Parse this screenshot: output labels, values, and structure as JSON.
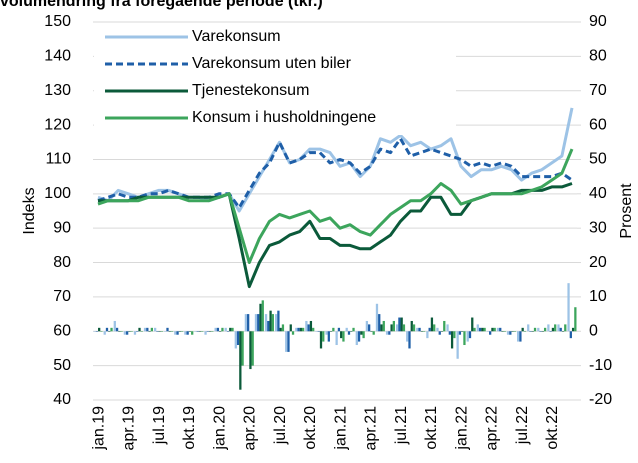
{
  "chart_data": {
    "type": "line",
    "title": "volumendring fra foregående periode (tkr.)",
    "ylabel": "Indeks",
    "y2label": "Prosent",
    "categories": [
      "jan.19",
      null,
      null,
      "apr.19",
      null,
      null,
      "jul.19",
      null,
      null,
      "okt.19",
      null,
      null,
      "jan.20",
      null,
      null,
      "apr.20",
      null,
      null,
      "jul.20",
      null,
      null,
      "okt.20",
      null,
      null,
      "jan.21",
      null,
      null,
      "apr.21",
      null,
      null,
      "jul.21",
      null,
      null,
      "okt.21",
      null,
      null,
      "jan.22",
      null,
      null,
      "apr.22",
      null,
      null,
      "jul.22",
      null,
      null,
      "okt.22",
      null,
      null
    ],
    "ylim": [
      40,
      150
    ],
    "yticks": [
      40,
      50,
      60,
      70,
      80,
      90,
      100,
      110,
      120,
      130,
      140,
      150
    ],
    "y2lim": [
      -20,
      90
    ],
    "y2ticks": [
      -20,
      -10,
      0,
      10,
      20,
      30,
      40,
      50,
      60,
      70,
      80,
      90
    ],
    "grid": true,
    "legend": "upper left",
    "series": [
      {
        "name": "Varekonsum",
        "color": "#9dc3e6",
        "dashed": false,
        "values": [
          99,
          98,
          101,
          100,
          99,
          100,
          101,
          101,
          100,
          99,
          99,
          98,
          99,
          100,
          95,
          100,
          105,
          110,
          115,
          109,
          110,
          113,
          113,
          112,
          108,
          109,
          105,
          108,
          116,
          115,
          117,
          114,
          115,
          113,
          114,
          116,
          108,
          105,
          107,
          107,
          108,
          107,
          104,
          106,
          107,
          109,
          111,
          125
        ]
      },
      {
        "name": "Varekonsum uten biler",
        "color": "#1f5fa8",
        "dashed": true,
        "values": [
          98,
          99,
          100,
          99,
          99,
          100,
          100,
          101,
          100,
          99,
          99,
          99,
          100,
          100,
          96,
          101,
          106,
          109,
          115,
          109,
          110,
          112,
          112,
          109,
          110,
          109,
          106,
          108,
          113,
          112,
          116,
          111,
          112,
          113,
          112,
          111,
          110,
          108,
          109,
          108,
          109,
          108,
          105,
          105,
          105,
          105,
          106,
          104
        ]
      },
      {
        "name": "Tjenestekonsum",
        "color": "#0b5a3a",
        "dashed": false,
        "values": [
          98,
          98,
          98,
          98,
          99,
          99,
          99,
          99,
          99,
          99,
          99,
          99,
          99,
          100,
          87,
          73,
          80,
          85,
          86,
          88,
          89,
          92,
          87,
          87,
          85,
          85,
          84,
          84,
          86,
          88,
          92,
          95,
          95,
          99,
          99,
          94,
          94,
          98,
          99,
          100,
          100,
          100,
          101,
          101,
          101,
          102,
          102,
          103
        ]
      },
      {
        "name": "Konsum i husholdningene",
        "color": "#3ca55c",
        "dashed": false,
        "values": [
          97,
          98,
          98,
          98,
          98,
          99,
          99,
          99,
          99,
          98,
          98,
          98,
          99,
          100,
          90,
          80,
          87,
          92,
          94,
          93,
          94,
          95,
          92,
          93,
          90,
          91,
          89,
          88,
          91,
          94,
          96,
          98,
          98,
          100,
          103,
          101,
          97,
          98,
          99,
          100,
          100,
          100,
          100,
          101,
          102,
          104,
          106,
          113
        ]
      }
    ],
    "bars": [
      {
        "color": "#9dc3e6",
        "axis": "y2",
        "values": [
          0,
          -1,
          3,
          -1,
          -1,
          1,
          1,
          0,
          -1,
          -1,
          0,
          -1,
          1,
          1,
          -5,
          5,
          5,
          5,
          5,
          -6,
          1,
          3,
          0,
          -1,
          -4,
          1,
          -4,
          3,
          8,
          -1,
          2,
          -3,
          1,
          -2,
          1,
          2,
          -8,
          -3,
          2,
          0,
          1,
          -1,
          -3,
          2,
          1,
          2,
          2,
          14
        ]
      },
      {
        "color": "#1f5fa8",
        "axis": "y2",
        "values": [
          0,
          1,
          1,
          -1,
          0,
          1,
          0,
          1,
          -1,
          -1,
          0,
          0,
          1,
          0,
          -4,
          5,
          5,
          3,
          6,
          -6,
          1,
          2,
          0,
          -3,
          1,
          -1,
          -3,
          2,
          5,
          -1,
          4,
          -5,
          1,
          1,
          -1,
          -1,
          -1,
          -2,
          1,
          -1,
          1,
          -1,
          -3,
          0,
          0,
          0,
          1,
          -2
        ]
      },
      {
        "color": "#0b5a3a",
        "axis": "y2",
        "values": [
          1,
          0,
          0,
          0,
          1,
          0,
          0,
          0,
          0,
          0,
          0,
          0,
          0,
          1,
          -17,
          -11,
          8,
          6,
          1,
          2,
          1,
          3,
          -5,
          0,
          -2,
          0,
          -1,
          0,
          2,
          2,
          4,
          3,
          0,
          4,
          0,
          -5,
          0,
          4,
          1,
          1,
          0,
          0,
          1,
          0,
          0,
          1,
          0,
          1
        ]
      },
      {
        "color": "#3ca55c",
        "axis": "y2",
        "values": [
          0,
          1,
          0,
          0,
          0,
          1,
          0,
          0,
          0,
          -1,
          0,
          0,
          1,
          1,
          -10,
          -10,
          9,
          5,
          2,
          -1,
          1,
          1,
          -3,
          1,
          -3,
          1,
          -2,
          -1,
          3,
          3,
          2,
          2,
          0,
          2,
          3,
          -2,
          -4,
          1,
          1,
          1,
          0,
          0,
          0,
          1,
          1,
          2,
          2,
          7
        ]
      }
    ]
  }
}
